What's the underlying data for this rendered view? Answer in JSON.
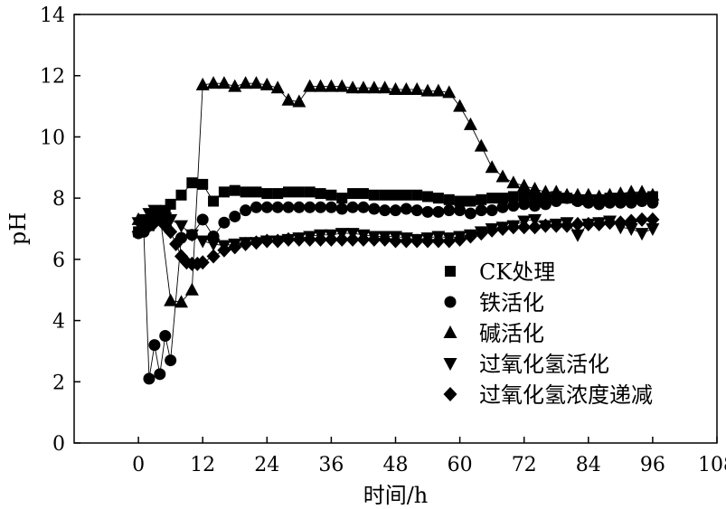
{
  "chart_data": {
    "type": "scatter",
    "xlabel": "时间/h",
    "ylabel": "pH",
    "xlim": [
      -12,
      108
    ],
    "ylim": [
      0,
      14
    ],
    "xticks": [
      0,
      12,
      24,
      36,
      48,
      60,
      72,
      84,
      96,
      108
    ],
    "yticks": [
      0,
      2,
      4,
      6,
      8,
      10,
      12,
      14
    ],
    "grid": false,
    "legend_position": "center-right",
    "series": [
      {
        "name": "CK处理",
        "marker": "square",
        "x": [
          0,
          1,
          2,
          3,
          4,
          5,
          6,
          8,
          10,
          12,
          14,
          16,
          18,
          20,
          22,
          24,
          26,
          28,
          30,
          32,
          34,
          36,
          38,
          40,
          42,
          44,
          46,
          48,
          50,
          52,
          54,
          56,
          58,
          60,
          62,
          64,
          66,
          68,
          70,
          72,
          74,
          76,
          78,
          80,
          82,
          84,
          86,
          88,
          90,
          92,
          94,
          96
        ],
        "y": [
          6.9,
          7.0,
          7.1,
          7.3,
          7.5,
          7.6,
          7.8,
          8.1,
          8.5,
          8.45,
          7.9,
          8.2,
          8.25,
          8.2,
          8.2,
          8.15,
          8.15,
          8.2,
          8.2,
          8.2,
          8.15,
          8.1,
          8.0,
          8.15,
          8.15,
          8.1,
          8.1,
          8.1,
          8.1,
          8.1,
          8.05,
          8.0,
          7.95,
          7.9,
          7.9,
          7.95,
          8.0,
          8.0,
          8.05,
          8.05,
          8.0,
          8.0,
          8.05,
          8.0,
          7.95,
          7.95,
          7.95,
          8.0,
          8.0,
          8.0,
          8.0,
          8.05
        ]
      },
      {
        "name": "铁活化",
        "marker": "circle",
        "x": [
          0,
          1,
          2,
          3,
          4,
          5,
          6,
          8,
          10,
          12,
          14,
          16,
          18,
          20,
          22,
          24,
          26,
          28,
          30,
          32,
          34,
          36,
          38,
          40,
          42,
          44,
          46,
          48,
          50,
          52,
          54,
          56,
          58,
          60,
          62,
          64,
          66,
          68,
          70,
          72,
          74,
          76,
          78,
          80,
          82,
          84,
          86,
          88,
          90,
          92,
          94,
          96
        ],
        "y": [
          6.85,
          6.9,
          2.1,
          3.2,
          2.25,
          3.5,
          2.7,
          6.7,
          6.8,
          7.3,
          6.75,
          7.2,
          7.4,
          7.6,
          7.7,
          7.7,
          7.7,
          7.7,
          7.7,
          7.7,
          7.7,
          7.7,
          7.65,
          7.7,
          7.7,
          7.65,
          7.6,
          7.6,
          7.65,
          7.6,
          7.55,
          7.55,
          7.6,
          7.6,
          7.5,
          7.6,
          7.6,
          7.7,
          7.75,
          7.8,
          7.75,
          7.8,
          7.9,
          8.0,
          7.9,
          7.85,
          7.8,
          7.85,
          7.85,
          7.85,
          7.9,
          7.85
        ]
      },
      {
        "name": "碱活化",
        "marker": "triangle-up",
        "x": [
          0,
          2,
          4,
          6,
          8,
          10,
          12,
          14,
          16,
          18,
          20,
          22,
          24,
          26,
          28,
          30,
          32,
          34,
          36,
          38,
          40,
          42,
          44,
          46,
          48,
          50,
          52,
          54,
          56,
          58,
          60,
          62,
          64,
          66,
          68,
          70,
          72,
          74,
          76,
          78,
          80,
          82,
          84,
          86,
          88,
          90,
          92,
          94,
          96
        ],
        "y": [
          7.3,
          7.4,
          7.5,
          4.65,
          4.6,
          5.0,
          11.7,
          11.75,
          11.75,
          11.65,
          11.75,
          11.75,
          11.7,
          11.6,
          11.2,
          11.15,
          11.65,
          11.65,
          11.65,
          11.65,
          11.6,
          11.6,
          11.6,
          11.6,
          11.55,
          11.55,
          11.55,
          11.5,
          11.5,
          11.45,
          11.0,
          10.4,
          9.7,
          9.0,
          8.7,
          8.5,
          8.4,
          8.3,
          8.2,
          8.2,
          8.1,
          8.1,
          8.1,
          8.05,
          8.1,
          8.15,
          8.2,
          8.2,
          8.1
        ]
      },
      {
        "name": "过氧化氢活化",
        "marker": "triangle-down",
        "x": [
          0,
          1,
          2,
          3,
          4,
          5,
          6,
          8,
          10,
          12,
          14,
          16,
          18,
          20,
          22,
          24,
          26,
          28,
          30,
          32,
          34,
          36,
          38,
          40,
          42,
          44,
          46,
          48,
          50,
          52,
          54,
          56,
          58,
          60,
          62,
          64,
          66,
          68,
          70,
          72,
          74,
          76,
          78,
          80,
          82,
          84,
          86,
          88,
          90,
          92,
          94,
          96
        ],
        "y": [
          7.2,
          7.3,
          7.5,
          7.6,
          7.4,
          7.35,
          7.3,
          7.1,
          6.8,
          6.6,
          6.5,
          6.45,
          6.5,
          6.55,
          6.55,
          6.6,
          6.6,
          6.65,
          6.7,
          6.75,
          6.8,
          6.8,
          6.85,
          6.85,
          6.8,
          6.75,
          6.75,
          6.75,
          6.7,
          6.65,
          6.7,
          6.75,
          6.7,
          6.75,
          6.8,
          6.9,
          7.0,
          7.05,
          7.1,
          7.25,
          7.3,
          7.1,
          7.15,
          7.2,
          6.8,
          7.15,
          7.2,
          7.25,
          7.05,
          7.0,
          6.85,
          7.0
        ]
      },
      {
        "name": "过氧化氢浓度递减",
        "marker": "diamond",
        "x": [
          0,
          1,
          2,
          3,
          4,
          5,
          6,
          7,
          8,
          9,
          10,
          11,
          12,
          14,
          16,
          18,
          20,
          22,
          24,
          26,
          28,
          30,
          32,
          34,
          36,
          38,
          40,
          42,
          44,
          46,
          48,
          50,
          52,
          54,
          56,
          58,
          60,
          62,
          64,
          66,
          68,
          70,
          72,
          74,
          76,
          78,
          80,
          82,
          84,
          86,
          88,
          90,
          92,
          94,
          96
        ],
        "y": [
          6.9,
          7.0,
          7.1,
          7.2,
          7.3,
          7.1,
          6.9,
          6.5,
          6.1,
          5.9,
          5.85,
          5.85,
          5.9,
          6.1,
          6.3,
          6.4,
          6.5,
          6.55,
          6.6,
          6.6,
          6.65,
          6.65,
          6.65,
          6.65,
          6.65,
          6.65,
          6.65,
          6.65,
          6.65,
          6.65,
          6.6,
          6.6,
          6.6,
          6.6,
          6.6,
          6.6,
          6.65,
          6.75,
          6.85,
          6.95,
          7.0,
          7.05,
          7.05,
          7.05,
          7.1,
          7.1,
          7.1,
          7.15,
          7.15,
          7.15,
          7.2,
          7.2,
          7.25,
          7.3,
          7.3
        ]
      }
    ]
  }
}
